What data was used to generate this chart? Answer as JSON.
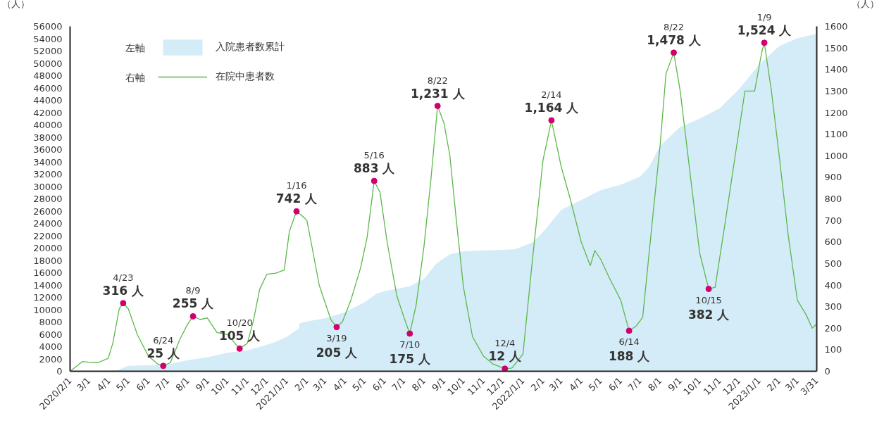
{
  "chart_data": {
    "type": "line",
    "ylabel": "（人）",
    "y2label": "（人）",
    "legend": "top left",
    "xlim": [
      "2020-02-01",
      "2023-03-31"
    ],
    "xticks": [
      {
        "value": "2020-02-01",
        "label": "2020/2/1"
      },
      {
        "value": "2020-03-01",
        "label": "3/1"
      },
      {
        "value": "2020-04-01",
        "label": "4/1"
      },
      {
        "value": "2020-05-01",
        "label": "5/1"
      },
      {
        "value": "2020-06-01",
        "label": "6/1"
      },
      {
        "value": "2020-07-01",
        "label": "7/1"
      },
      {
        "value": "2020-08-01",
        "label": "8/1"
      },
      {
        "value": "2020-09-01",
        "label": "9/1"
      },
      {
        "value": "2020-10-01",
        "label": "10/1"
      },
      {
        "value": "2020-11-01",
        "label": "11/1"
      },
      {
        "value": "2020-12-01",
        "label": "12/1"
      },
      {
        "value": "2021-01-01",
        "label": "2021/1/1"
      },
      {
        "value": "2021-02-01",
        "label": "2/1"
      },
      {
        "value": "2021-03-01",
        "label": "3/1"
      },
      {
        "value": "2021-04-01",
        "label": "4/1"
      },
      {
        "value": "2021-05-01",
        "label": "5/1"
      },
      {
        "value": "2021-06-01",
        "label": "6/1"
      },
      {
        "value": "2021-07-01",
        "label": "7/1"
      },
      {
        "value": "2021-08-01",
        "label": "8/1"
      },
      {
        "value": "2021-09-01",
        "label": "9/1"
      },
      {
        "value": "2021-10-01",
        "label": "10/1"
      },
      {
        "value": "2021-11-01",
        "label": "11/1"
      },
      {
        "value": "2021-12-01",
        "label": "12/1"
      },
      {
        "value": "2022-01-01",
        "label": "2022/1/1"
      },
      {
        "value": "2022-02-01",
        "label": "2/1"
      },
      {
        "value": "2022-03-01",
        "label": "3/1"
      },
      {
        "value": "2022-04-01",
        "label": "4/1"
      },
      {
        "value": "2022-05-01",
        "label": "5/1"
      },
      {
        "value": "2022-06-01",
        "label": "6/1"
      },
      {
        "value": "2022-07-01",
        "label": "7/1"
      },
      {
        "value": "2022-08-01",
        "label": "8/1"
      },
      {
        "value": "2022-09-01",
        "label": "9/1"
      },
      {
        "value": "2022-10-01",
        "label": "10/1"
      },
      {
        "value": "2022-11-01",
        "label": "11/1"
      },
      {
        "value": "2022-12-01",
        "label": "12/1"
      },
      {
        "value": "2023-01-01",
        "label": "2023/1/1"
      },
      {
        "value": "2023-02-01",
        "label": "2/1"
      },
      {
        "value": "2023-03-01",
        "label": "3/1"
      },
      {
        "value": "2023-03-31",
        "label": "3/31"
      }
    ],
    "ylim": [
      0,
      56000
    ],
    "yticks": [
      0,
      2000,
      4000,
      6000,
      8000,
      10000,
      12000,
      14000,
      16000,
      18000,
      20000,
      22000,
      24000,
      26000,
      28000,
      30000,
      32000,
      34000,
      36000,
      38000,
      40000,
      42000,
      44000,
      46000,
      48000,
      50000,
      52000,
      54000,
      56000
    ],
    "y2lim": [
      0,
      1600
    ],
    "y2ticks": [
      0,
      100,
      200,
      300,
      400,
      500,
      600,
      700,
      800,
      900,
      1000,
      1100,
      1200,
      1300,
      1400,
      1500,
      1600
    ],
    "series": [
      {
        "name": "入院患者数累計",
        "type": "area",
        "color": "#d4ebf8",
        "x": [
          "2020-02-01",
          "2020-04-01",
          "2020-04-15",
          "2020-05-01",
          "2020-07-01",
          "2020-08-01",
          "2020-09-01",
          "2020-10-01",
          "2020-11-01",
          "2020-12-01",
          "2020-12-15",
          "2021-01-01",
          "2021-01-20",
          "2021-01-21",
          "2021-02-01",
          "2021-03-01",
          "2021-04-01",
          "2021-05-01",
          "2021-05-20",
          "2021-06-01",
          "2021-07-10",
          "2021-08-01",
          "2021-08-20",
          "2021-09-10",
          "2021-10-01",
          "2021-12-20",
          "2022-01-15",
          "2022-02-01",
          "2022-03-01",
          "2022-04-01",
          "2022-05-01",
          "2022-06-01",
          "2022-07-01",
          "2022-07-15",
          "2022-08-01",
          "2022-09-01",
          "2022-10-01",
          "2022-11-01",
          "2022-12-01",
          "2023-01-01",
          "2023-02-01",
          "2023-03-01",
          "2023-03-31"
        ],
        "values": [
          0,
          100,
          200,
          900,
          1100,
          1800,
          2300,
          3000,
          3400,
          4300,
          4800,
          5600,
          7000,
          7800,
          8100,
          8600,
          9600,
          11200,
          12600,
          13000,
          13800,
          15000,
          17500,
          19000,
          19500,
          19800,
          20900,
          22600,
          26200,
          27800,
          29400,
          30300,
          31600,
          33200,
          36600,
          39700,
          41000,
          42700,
          45800,
          49800,
          52800,
          54100,
          54800
        ]
      },
      {
        "name": "在院中患者数",
        "axis": "y2",
        "color": "#5cb84a",
        "x": [
          "2020-02-01",
          "2020-02-20",
          "2020-03-01",
          "2020-03-15",
          "2020-03-31",
          "2020-04-07",
          "2020-04-17",
          "2020-04-23",
          "2020-05-01",
          "2020-05-15",
          "2020-06-01",
          "2020-06-15",
          "2020-06-24",
          "2020-07-05",
          "2020-07-20",
          "2020-08-01",
          "2020-08-09",
          "2020-08-20",
          "2020-08-31",
          "2020-09-15",
          "2020-10-01",
          "2020-10-10",
          "2020-10-20",
          "2020-11-01",
          "2020-11-10",
          "2020-11-20",
          "2020-12-01",
          "2020-12-15",
          "2020-12-28",
          "2021-01-05",
          "2021-01-16",
          "2021-01-25",
          "2021-02-01",
          "2021-02-10",
          "2021-02-20",
          "2021-03-01",
          "2021-03-10",
          "2021-03-19",
          "2021-03-28",
          "2021-04-10",
          "2021-04-25",
          "2021-05-05",
          "2021-05-16",
          "2021-05-25",
          "2021-06-05",
          "2021-06-20",
          "2021-07-01",
          "2021-07-10",
          "2021-07-20",
          "2021-08-01",
          "2021-08-12",
          "2021-08-22",
          "2021-09-01",
          "2021-09-10",
          "2021-09-20",
          "2021-10-01",
          "2021-10-15",
          "2021-11-01",
          "2021-11-15",
          "2021-12-04",
          "2021-12-15",
          "2022-01-01",
          "2022-01-15",
          "2022-02-01",
          "2022-02-14",
          "2022-03-01",
          "2022-03-15",
          "2022-04-01",
          "2022-04-15",
          "2022-04-22",
          "2022-05-01",
          "2022-05-15",
          "2022-06-01",
          "2022-06-14",
          "2022-06-25",
          "2022-07-05",
          "2022-07-20",
          "2022-08-01",
          "2022-08-10",
          "2022-08-22",
          "2022-09-01",
          "2022-09-15",
          "2022-10-01",
          "2022-10-15",
          "2022-10-25",
          "2022-11-10",
          "2022-11-25",
          "2022-12-10",
          "2022-12-25",
          "2023-01-05",
          "2023-01-09",
          "2023-01-20",
          "2023-02-01",
          "2023-02-15",
          "2023-03-01",
          "2023-03-15",
          "2023-03-24",
          "2023-03-31"
        ],
        "values": [
          0,
          45,
          42,
          40,
          60,
          130,
          290,
          316,
          290,
          170,
          70,
          35,
          25,
          40,
          150,
          220,
          255,
          240,
          248,
          180,
          170,
          140,
          105,
          130,
          230,
          380,
          450,
          455,
          470,
          650,
          742,
          720,
          700,
          560,
          400,
          320,
          240,
          205,
          230,
          330,
          480,
          620,
          883,
          830,
          600,
          350,
          250,
          175,
          310,
          580,
          900,
          1231,
          1150,
          1000,
          700,
          390,
          160,
          70,
          35,
          12,
          15,
          80,
          500,
          980,
          1164,
          950,
          800,
          600,
          490,
          560,
          520,
          430,
          330,
          188,
          210,
          250,
          700,
          1050,
          1380,
          1478,
          1300,
          950,
          550,
          382,
          390,
          700,
          1000,
          1300,
          1300,
          1480,
          1524,
          1300,
          1000,
          630,
          330,
          260,
          200,
          220
        ]
      },
      {
        "type": "scatter",
        "axis": "y2",
        "color": "#d1006f",
        "x": [
          "2020-04-23",
          "2020-06-24",
          "2020-08-09",
          "2020-10-20",
          "2021-01-16",
          "2021-03-19",
          "2021-05-16",
          "2021-07-10",
          "2021-08-22",
          "2021-12-04",
          "2022-02-14",
          "2022-06-14",
          "2022-08-22",
          "2022-10-15",
          "2023-01-09"
        ],
        "values": [
          316,
          25,
          255,
          105,
          742,
          205,
          883,
          175,
          1231,
          12,
          1164,
          188,
          1478,
          382,
          1524
        ],
        "value_labels": [
          "316 人",
          "25 人",
          "255 人",
          "105 人",
          "742 人",
          "205 人",
          "883 人",
          "175 人",
          "1,231 人",
          "12 人",
          "1,164 人",
          "188 人",
          "1,478 人",
          "382 人",
          "1,524 人"
        ]
      }
    ],
    "annotations": [
      "左軸",
      "右軸",
      "4/23",
      "6/24",
      "8/9",
      "10/20",
      "1/16",
      "3/19",
      "5/16",
      "7/10",
      "8/22",
      "12/4",
      "2/14",
      "6/14",
      "8/22",
      "10/15",
      "1/9"
    ]
  }
}
